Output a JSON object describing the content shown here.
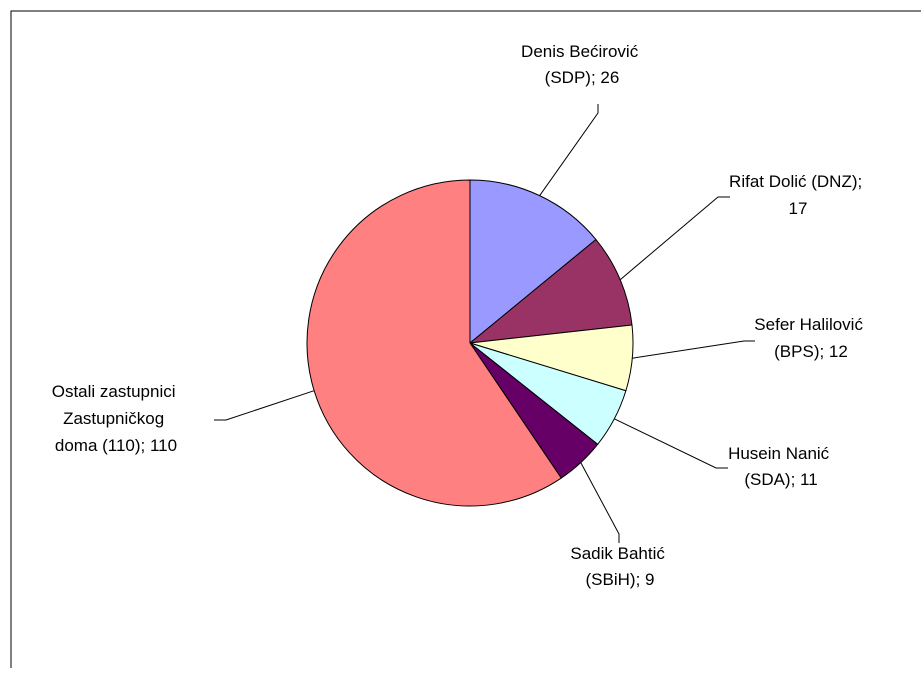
{
  "chart_data": {
    "type": "pie",
    "title": "",
    "slices": [
      {
        "label_lines": [
          "Denis Bećirović",
          "(SDP); 26"
        ],
        "value": 26,
        "color": "#9999ff"
      },
      {
        "label_lines": [
          "Rifat Dolić (DNZ);",
          "17"
        ],
        "value": 17,
        "color": "#993366"
      },
      {
        "label_lines": [
          "Sefer Halilović",
          "(BPS); 12"
        ],
        "value": 12,
        "color": "#ffffcc"
      },
      {
        "label_lines": [
          "Husein Nanić",
          "(SDA); 11"
        ],
        "value": 11,
        "color": "#ccffff"
      },
      {
        "label_lines": [
          "Sadik Bahtić",
          "(SBiH); 9"
        ],
        "value": 9,
        "color": "#660066"
      },
      {
        "label_lines": [
          "Ostali zastupnici",
          "Zastupničkog",
          "doma (110); 110"
        ],
        "value": 110,
        "color": "#ff8080"
      }
    ],
    "start_angle_deg": 0,
    "direction": "clockwise"
  }
}
